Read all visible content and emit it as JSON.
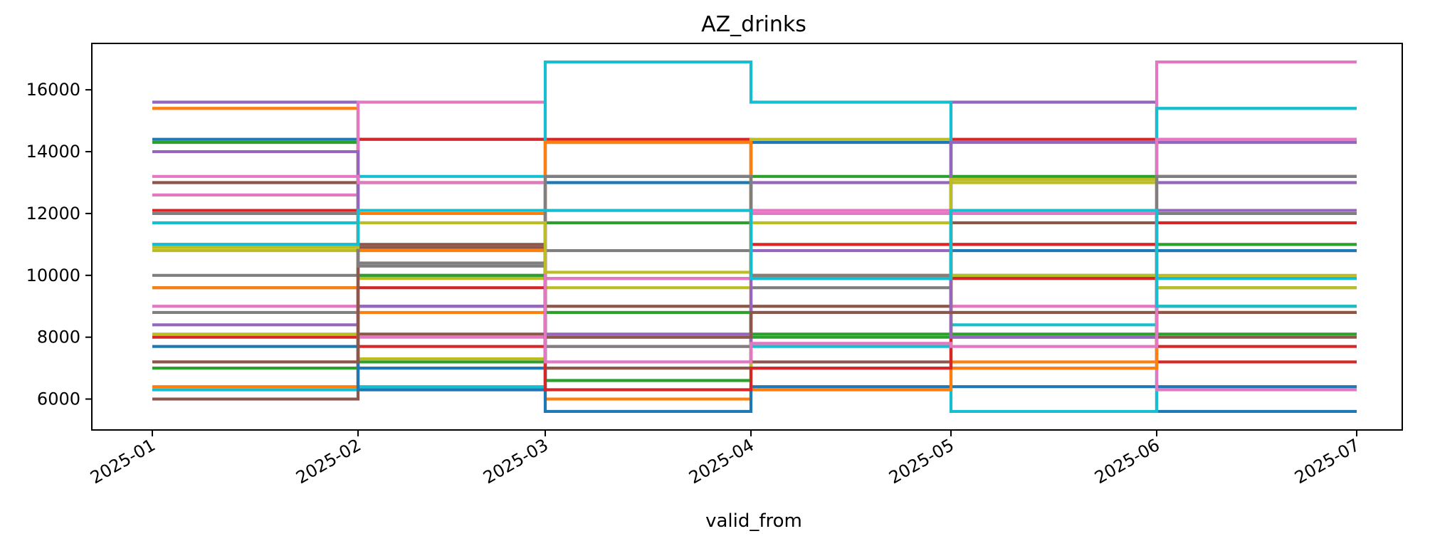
{
  "chart_data": {
    "type": "line",
    "step": "post",
    "title": "AZ_drinks",
    "xlabel": "valid_from",
    "ylabel": "",
    "x": [
      "2025-01",
      "2025-02",
      "2025-03",
      "2025-04",
      "2025-05",
      "2025-06",
      "2025-07"
    ],
    "x_tick_labels": [
      "2025-01",
      "2025-02",
      "2025-03",
      "2025-04",
      "2025-05",
      "2025-06",
      "2025-07"
    ],
    "y_ticks": [
      6000,
      8000,
      10000,
      12000,
      14000,
      16000
    ],
    "ylim": [
      5000,
      17500
    ],
    "grid": false,
    "colors": [
      "#1f77b4",
      "#ff7f0e",
      "#2ca02c",
      "#d62728",
      "#9467bd",
      "#8c564b",
      "#e377c2",
      "#7f7f7f",
      "#bcbd22",
      "#17becf"
    ],
    "series": [
      {
        "values": [
          14400,
          14400,
          13200,
          14300,
          12100,
          5600,
          5600
        ]
      },
      {
        "values": [
          15400,
          10800,
          6000,
          6300,
          7000,
          8800,
          8800
        ]
      },
      {
        "values": [
          14300,
          13000,
          11700,
          13200,
          13200,
          13200,
          13200
        ]
      },
      {
        "values": [
          12100,
          14400,
          14400,
          11000,
          14400,
          7200,
          7200
        ]
      },
      {
        "values": [
          15600,
          9000,
          9900,
          13000,
          15600,
          13000,
          13000
        ]
      },
      {
        "values": [
          13000,
          11000,
          7000,
          9000,
          11700,
          10800,
          10800
        ]
      },
      {
        "values": [
          12600,
          15600,
          7700,
          12000,
          9000,
          16900,
          16900
        ]
      },
      {
        "values": [
          8800,
          10400,
          7700,
          9600,
          11000,
          12000,
          12000
        ]
      },
      {
        "values": [
          10800,
          9900,
          9600,
          14400,
          13000,
          14400,
          14400
        ]
      },
      {
        "values": [
          11700,
          13200,
          16900,
          15600,
          5600,
          15400,
          15400
        ]
      },
      {
        "values": [
          9600,
          7000,
          5600,
          6400,
          6400,
          6400,
          6400
        ]
      },
      {
        "values": [
          6400,
          12000,
          14300,
          6300,
          7200,
          9000,
          9000
        ]
      },
      {
        "values": [
          7000,
          7200,
          6600,
          8100,
          8100,
          8100,
          8100
        ]
      },
      {
        "values": [
          8000,
          7700,
          12100,
          12100,
          9900,
          7700,
          7700
        ]
      },
      {
        "values": [
          14000,
          6300,
          8100,
          8800,
          14300,
          14300,
          14300
        ]
      },
      {
        "values": [
          6000,
          8100,
          9000,
          7200,
          8000,
          8000,
          8000
        ]
      },
      {
        "values": [
          9000,
          8000,
          9900,
          12100,
          12000,
          6300,
          6300
        ]
      },
      {
        "values": [
          10000,
          10000,
          10800,
          9900,
          8800,
          9600,
          9600
        ]
      },
      {
        "values": [
          8100,
          7300,
          8800,
          7000,
          13100,
          9600,
          9600
        ]
      },
      {
        "values": [
          6300,
          6400,
          8000,
          7700,
          8400,
          9900,
          9900
        ]
      },
      {
        "values": [
          7700,
          6300,
          13000,
          10000,
          10800,
          10800,
          10800
        ]
      },
      {
        "values": [
          9600,
          8800,
          14300,
          10000,
          7000,
          8800,
          8800
        ]
      },
      {
        "values": [
          11000,
          10000,
          8800,
          8000,
          10000,
          11000,
          11000
        ]
      },
      {
        "values": [
          7200,
          9600,
          6300,
          7000,
          11000,
          11700,
          11700
        ]
      },
      {
        "values": [
          8400,
          9000,
          7200,
          10800,
          8000,
          12100,
          12100
        ]
      },
      {
        "values": [
          7200,
          10900,
          8000,
          8800,
          8800,
          8800,
          8800
        ]
      },
      {
        "values": [
          13200,
          13000,
          7200,
          7800,
          7700,
          14400,
          14400
        ]
      },
      {
        "values": [
          12000,
          10300,
          13200,
          10000,
          12100,
          13200,
          13200
        ]
      },
      {
        "values": [
          10900,
          11700,
          10100,
          11700,
          10000,
          10000,
          10000
        ]
      },
      {
        "values": [
          11000,
          12100,
          12100,
          9900,
          12100,
          9000,
          9000
        ]
      }
    ]
  }
}
